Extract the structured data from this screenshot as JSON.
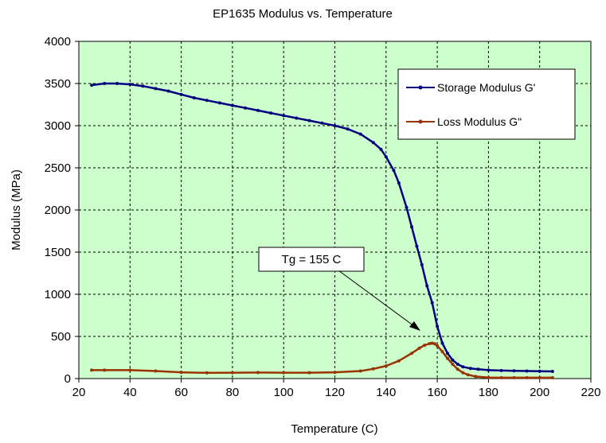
{
  "chart_data": {
    "type": "line",
    "title": "EP1635 Modulus vs. Temperature",
    "xlabel": "Temperature (C)",
    "ylabel": "Modulus (MPa)",
    "xlim": [
      20,
      220
    ],
    "ylim": [
      0,
      4000
    ],
    "xticks": [
      20,
      40,
      60,
      80,
      100,
      120,
      140,
      160,
      180,
      200,
      220
    ],
    "yticks": [
      0,
      500,
      1000,
      1500,
      2000,
      2500,
      3000,
      3500,
      4000
    ],
    "grid": true,
    "plot_background": "#ccffcc",
    "legend_position": "top-right",
    "series": [
      {
        "name": "Storage Modulus G'",
        "color": "#000080",
        "x": [
          25,
          30,
          35,
          40,
          45,
          50,
          55,
          60,
          65,
          70,
          75,
          80,
          85,
          90,
          95,
          100,
          105,
          110,
          115,
          120,
          125,
          130,
          135,
          138,
          140,
          143,
          145,
          148,
          150,
          152,
          154,
          156,
          158,
          160,
          162,
          164,
          166,
          168,
          170,
          173,
          176,
          180,
          185,
          190,
          195,
          200,
          205
        ],
        "values": [
          3480,
          3500,
          3500,
          3490,
          3470,
          3440,
          3410,
          3370,
          3330,
          3300,
          3270,
          3240,
          3210,
          3180,
          3150,
          3120,
          3090,
          3060,
          3030,
          3000,
          2960,
          2900,
          2800,
          2720,
          2630,
          2470,
          2320,
          2030,
          1800,
          1570,
          1350,
          1100,
          900,
          620,
          420,
          300,
          220,
          170,
          140,
          120,
          110,
          100,
          95,
          92,
          90,
          88,
          85
        ]
      },
      {
        "name": "Loss Modulus G\"",
        "color": "#993300",
        "x": [
          25,
          30,
          40,
          50,
          60,
          70,
          80,
          90,
          100,
          110,
          120,
          130,
          135,
          140,
          145,
          150,
          153,
          155,
          157,
          158,
          159,
          160,
          162,
          164,
          166,
          168,
          170,
          172,
          175,
          180,
          185,
          190,
          195,
          200,
          205
        ],
        "values": [
          100,
          100,
          100,
          90,
          75,
          68,
          70,
          72,
          70,
          70,
          75,
          90,
          115,
          150,
          210,
          300,
          360,
          395,
          415,
          420,
          412,
          390,
          320,
          240,
          170,
          110,
          70,
          45,
          25,
          12,
          10,
          10,
          10,
          10,
          10
        ]
      }
    ],
    "annotations": [
      {
        "text": "Tg = 155 C",
        "arrow_to": {
          "x": 155,
          "y": 430
        }
      }
    ]
  }
}
